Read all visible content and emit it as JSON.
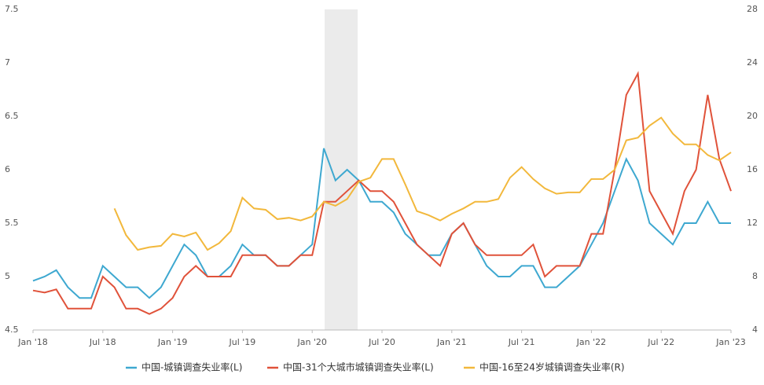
{
  "chart_data": {
    "type": "line",
    "categories": [
      "Jan '18",
      null,
      null,
      null,
      null,
      null,
      "Jul '18",
      null,
      null,
      null,
      null,
      null,
      "Jan '19",
      null,
      null,
      null,
      null,
      null,
      "Jul '19",
      null,
      null,
      null,
      null,
      null,
      "Jan '20",
      null,
      null,
      null,
      null,
      null,
      "Jul '20",
      null,
      null,
      null,
      null,
      null,
      "Jan '21",
      null,
      null,
      null,
      null,
      null,
      "Jul '21",
      null,
      null,
      null,
      null,
      null,
      "Jan '22",
      null,
      null,
      null,
      null,
      null,
      "Jul '22",
      null,
      null,
      null,
      null,
      null,
      "Jan '23"
    ],
    "series": [
      {
        "name": "中国-城镇调查失业率(L)",
        "color": "#3ea8d0",
        "values": [
          4.96,
          5.0,
          5.06,
          4.9,
          4.8,
          4.8,
          5.1,
          5.0,
          4.9,
          4.9,
          4.8,
          4.9,
          5.1,
          5.3,
          5.2,
          5.0,
          5.0,
          5.1,
          5.3,
          5.2,
          5.2,
          5.1,
          5.1,
          5.2,
          5.3,
          6.2,
          5.9,
          6.0,
          5.9,
          5.7,
          5.7,
          5.6,
          5.4,
          5.3,
          5.2,
          5.2,
          5.4,
          5.5,
          5.3,
          5.1,
          5.0,
          5.0,
          5.1,
          5.1,
          4.9,
          4.9,
          5.0,
          5.1,
          5.3,
          5.5,
          5.8,
          6.1,
          5.9,
          5.5,
          5.4,
          5.3,
          5.5,
          5.5,
          5.7,
          5.5,
          5.5
        ]
      },
      {
        "name": "中国-31个大城市城镇调查失业率(L)",
        "color": "#e0523a",
        "values": [
          4.87,
          4.85,
          4.88,
          4.7,
          4.7,
          4.7,
          5.0,
          4.9,
          4.7,
          4.7,
          4.65,
          4.7,
          4.8,
          5.0,
          5.1,
          5.0,
          5.0,
          5.0,
          5.2,
          5.2,
          5.2,
          5.1,
          5.1,
          5.2,
          5.2,
          5.7,
          5.7,
          5.8,
          5.9,
          5.8,
          5.8,
          5.7,
          5.5,
          5.3,
          5.2,
          5.1,
          5.4,
          5.5,
          5.3,
          5.2,
          5.2,
          5.2,
          5.2,
          5.3,
          5.0,
          5.1,
          5.1,
          5.1,
          5.4,
          5.4,
          6.0,
          6.7,
          6.9,
          5.8,
          5.6,
          5.4,
          5.8,
          6.0,
          6.7,
          6.1,
          5.8
        ]
      },
      {
        "name": "中国-16至24岁城镇调查失业率(R)",
        "color": "#f2b83c",
        "axis": "y2",
        "values": [
          null,
          null,
          null,
          null,
          null,
          null,
          null,
          13.1,
          11.1,
          10.0,
          10.2,
          10.3,
          11.2,
          11.0,
          11.3,
          10.0,
          10.5,
          11.4,
          13.9,
          13.1,
          13.0,
          12.3,
          12.4,
          12.2,
          12.5,
          13.6,
          13.3,
          13.8,
          15.1,
          15.4,
          16.8,
          16.8,
          14.9,
          12.9,
          12.6,
          12.2,
          12.7,
          13.1,
          13.6,
          13.6,
          13.8,
          15.4,
          16.2,
          15.3,
          14.6,
          14.2,
          14.3,
          14.3,
          15.3,
          15.3,
          16.0,
          18.2,
          18.4,
          19.3,
          19.9,
          18.7,
          17.9,
          17.9,
          17.1,
          16.7,
          17.3
        ]
      }
    ],
    "ylim": [
      4.5,
      7.5
    ],
    "yticks": [
      4.5,
      5,
      5.5,
      6,
      6.5,
      7,
      7.5
    ],
    "y2lim": [
      4,
      28
    ],
    "y2ticks": [
      4,
      8,
      12,
      16,
      20,
      24,
      28
    ]
  }
}
